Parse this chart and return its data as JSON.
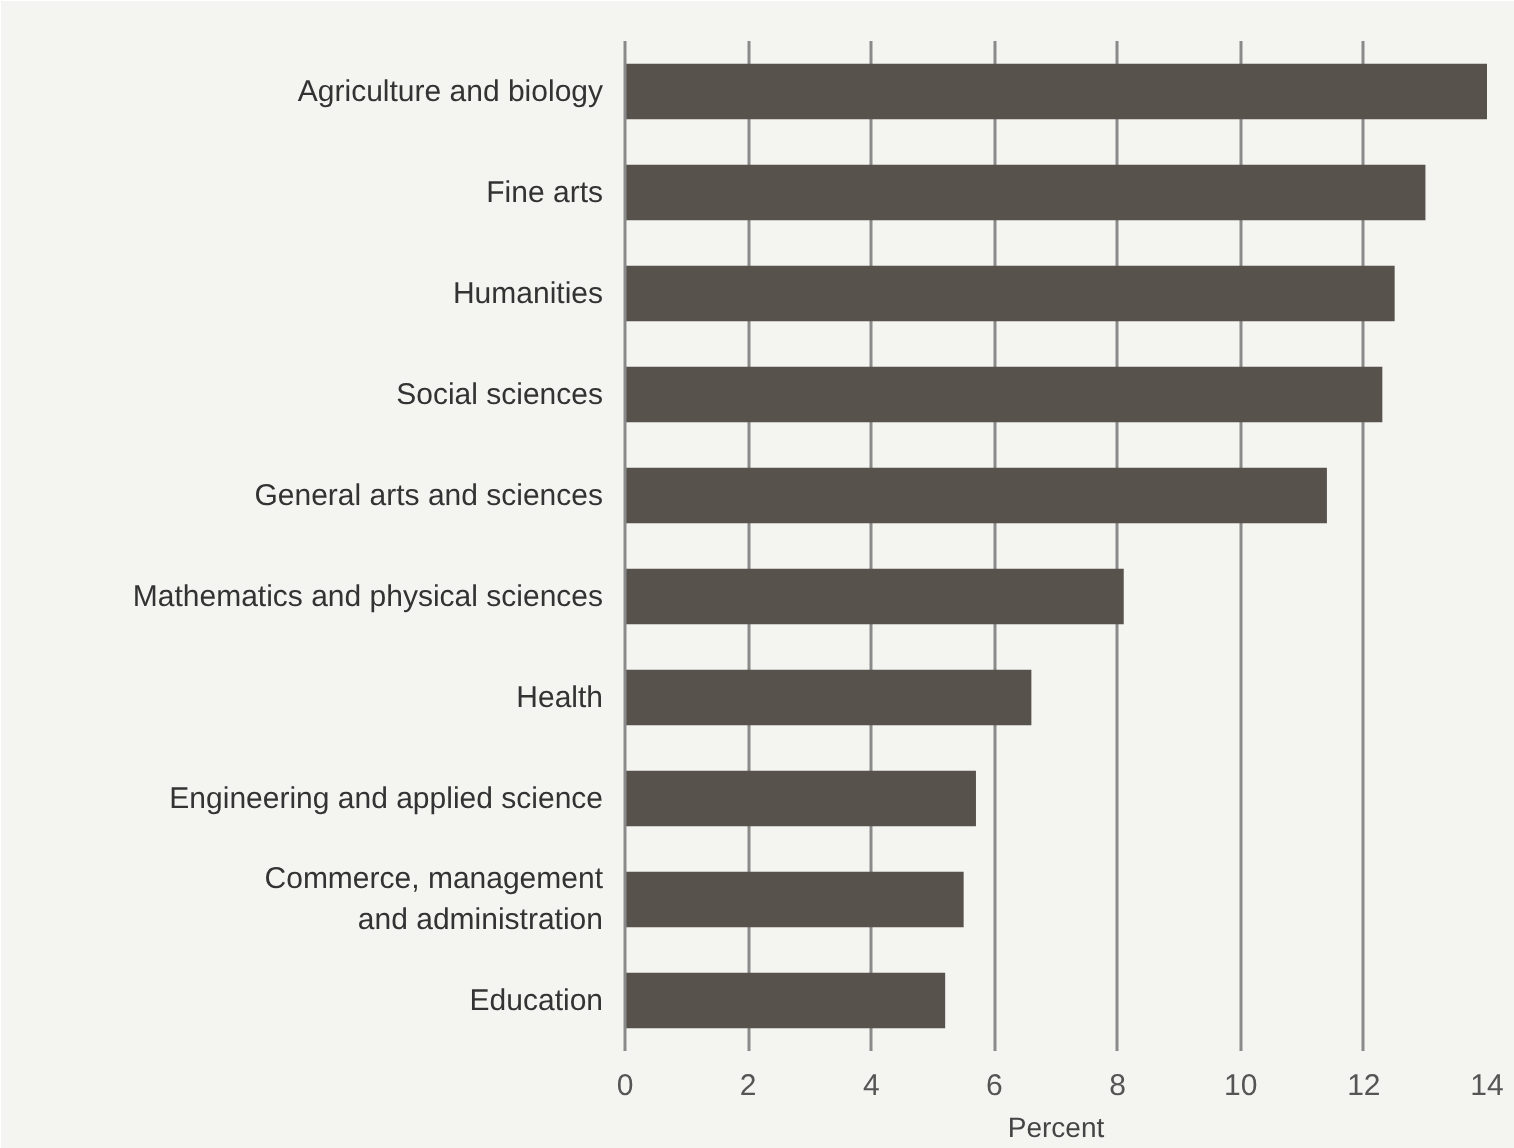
{
  "chart_data": {
    "type": "bar",
    "orientation": "horizontal",
    "xlabel": "Percent",
    "categories": [
      "Agriculture and biology",
      "Fine arts",
      "Humanities",
      "Social sciences",
      "General arts and sciences",
      "Mathematics and physical sciences",
      "Health",
      "Engineering and applied science",
      "Commerce, management\nand administration",
      "Education"
    ],
    "values": [
      14.0,
      13.0,
      12.5,
      12.3,
      11.4,
      8.1,
      6.6,
      5.7,
      5.5,
      5.2
    ],
    "color": "#57524c",
    "xlim": [
      0,
      14
    ],
    "xticks": [
      0,
      2,
      4,
      6,
      8,
      10,
      12,
      14
    ],
    "grid": "x"
  }
}
